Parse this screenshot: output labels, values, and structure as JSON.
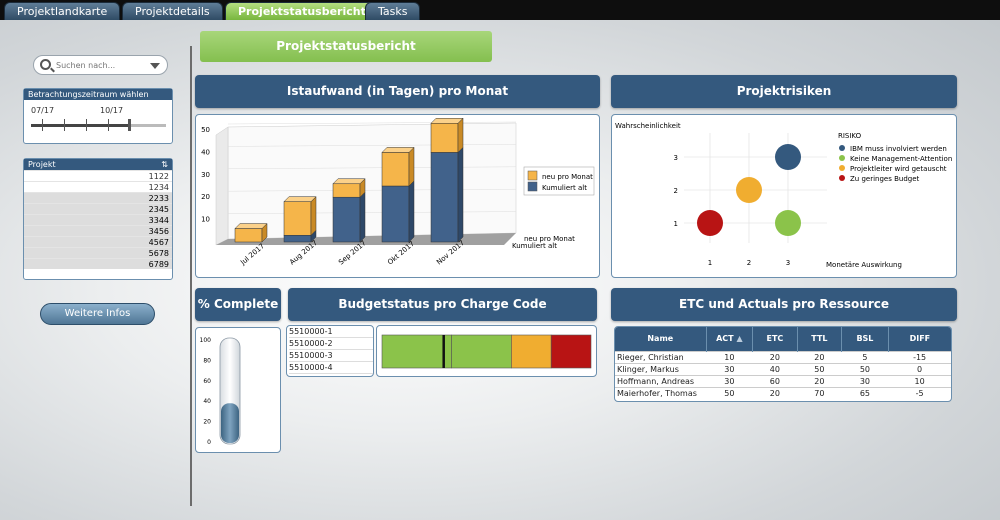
{
  "tabs": [
    {
      "label": "Projektlandkarte"
    },
    {
      "label": "Projektdetails"
    },
    {
      "label": "Projektstatusbericht"
    },
    {
      "label": "Tasks"
    }
  ],
  "search": {
    "placeholder": "Suchen nach..."
  },
  "time_range": {
    "title": "Betrachtungszeitraum wählen",
    "start": "07/17",
    "end": "10/17"
  },
  "projects": {
    "header": "Projekt",
    "items": [
      "1122",
      "1234",
      "2233",
      "2345",
      "3344",
      "3456",
      "4567",
      "5678",
      "6789"
    ]
  },
  "more_button": "Weitere Infos",
  "page_title": "Projektstatusbericht",
  "effort": {
    "title": "Istaufwand (in Tagen) pro Monat",
    "legend": [
      "neu pro Monat",
      "Kumuliert alt"
    ],
    "side_labels": [
      "neu pro Monat",
      "Kumuliert alt"
    ]
  },
  "risks": {
    "title": "Projektrisiken",
    "ylabel": "Wahrscheinlichkeit",
    "xlabel": "Monetäre Auswirkung",
    "legend_title": "RISIKO"
  },
  "percent": {
    "title": "% Complete"
  },
  "budget": {
    "title": "Budgetstatus pro Charge Code",
    "codes": [
      "5510000-1",
      "5510000-2",
      "5510000-3",
      "5510000-4"
    ]
  },
  "resources": {
    "title": "ETC und Actuals pro Ressource",
    "columns": [
      "Name",
      "ACT",
      "ETC",
      "TTL",
      "BSL",
      "DIFF"
    ],
    "rows": [
      [
        "Rieger, Christian",
        "10",
        "20",
        "20",
        "5",
        "-15"
      ],
      [
        "Klinger, Markus",
        "30",
        "40",
        "50",
        "50",
        "0"
      ],
      [
        "Hoffmann, Andreas",
        "30",
        "60",
        "20",
        "30",
        "10"
      ],
      [
        "Maierhofer, Thomas",
        "50",
        "20",
        "70",
        "65",
        "-5"
      ]
    ]
  },
  "chart_data": [
    {
      "type": "bar",
      "title": "Istaufwand (in Tagen) pro Monat",
      "categories": [
        "Jul 2017",
        "Aug 2017",
        "Sep 2017",
        "Okt 2017",
        "Nov 2017"
      ],
      "series": [
        {
          "name": "Kumuliert alt",
          "color": "#41628b",
          "values": [
            0,
            3,
            20,
            25,
            40
          ]
        },
        {
          "name": "neu pro Monat",
          "color": "#f5b54a",
          "values": [
            6,
            15,
            6,
            15,
            13
          ]
        }
      ],
      "ylim": [
        0,
        50
      ],
      "yticks": [
        10,
        20,
        30,
        40,
        50
      ],
      "stacked": true
    },
    {
      "type": "scatter",
      "title": "Projektrisiken",
      "xlabel": "Monetäre Auswirkung",
      "ylabel": "Wahrscheinlichkeit",
      "xticks": [
        1,
        2,
        3
      ],
      "yticks": [
        1,
        2,
        3
      ],
      "series": [
        {
          "name": "IBM muss involviert werden",
          "color": "#34597e",
          "x": 3,
          "y": 3
        },
        {
          "name": "Keine Management-Attention",
          "color": "#8bc34a",
          "x": 3,
          "y": 1
        },
        {
          "name": "Projektleiter wird getauscht",
          "color": "#f0ad30",
          "x": 2,
          "y": 2
        },
        {
          "name": "Zu geringes Budget",
          "color": "#b81414",
          "x": 1,
          "y": 1
        }
      ]
    },
    {
      "type": "bar",
      "title": "% Complete",
      "yticks": [
        0,
        20,
        40,
        60,
        80,
        100
      ],
      "ylim": [
        0,
        100
      ],
      "values": [
        38
      ],
      "color": "#4b7392"
    },
    {
      "type": "bar",
      "title": "Budgetstatus pro Charge Code",
      "segments": [
        {
          "color": "#8bc34a",
          "value": 35
        },
        {
          "color": "#8bc34a",
          "value": 30
        },
        {
          "color": "#f0ad30",
          "value": 20
        },
        {
          "color": "#b81414",
          "value": 20
        }
      ],
      "marker": 31
    }
  ]
}
